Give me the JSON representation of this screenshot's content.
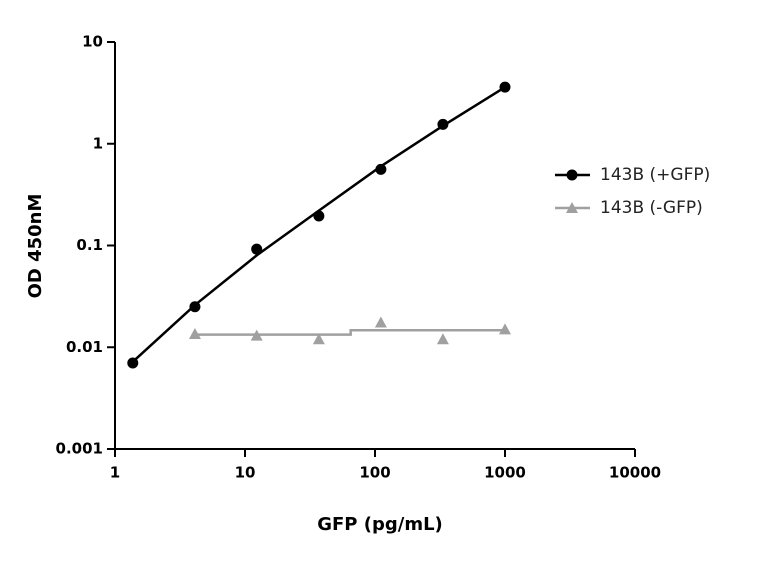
{
  "chart_data": {
    "type": "scatter",
    "xlabel": "GFP (pg/mL)",
    "ylabel": "OD 450nM",
    "xscale": "log",
    "yscale": "log",
    "xlim": [
      1,
      10000
    ],
    "ylim": [
      0.001,
      10
    ],
    "xticks": [
      1,
      10,
      100,
      1000,
      10000
    ],
    "yticks": [
      0.001,
      0.01,
      0.1,
      1,
      10
    ],
    "legend": "right",
    "series": [
      {
        "name": "143B (+GFP)",
        "color": "#000000",
        "marker": "circle",
        "x": [
          1.37,
          4.12,
          12.3,
          37,
          111,
          333,
          1000
        ],
        "values": [
          0.007,
          0.025,
          0.092,
          0.195,
          0.56,
          1.55,
          3.6
        ],
        "fit": {
          "x": [
            1.37,
            4.12,
            12.3,
            37,
            111,
            333,
            1000
          ],
          "values": [
            0.0072,
            0.026,
            0.08,
            0.22,
            0.6,
            1.5,
            3.6
          ]
        }
      },
      {
        "name": "143B (-GFP)",
        "color": "#a0a0a0",
        "marker": "triangle",
        "x": [
          4.12,
          12.3,
          37,
          111,
          333,
          1000
        ],
        "values": [
          0.0135,
          0.013,
          0.012,
          0.0175,
          0.012,
          0.015
        ],
        "fit": {
          "x": [
            4.12,
            65,
            65,
            1000
          ],
          "values": [
            0.0133,
            0.0133,
            0.0147,
            0.0147
          ]
        }
      }
    ]
  }
}
